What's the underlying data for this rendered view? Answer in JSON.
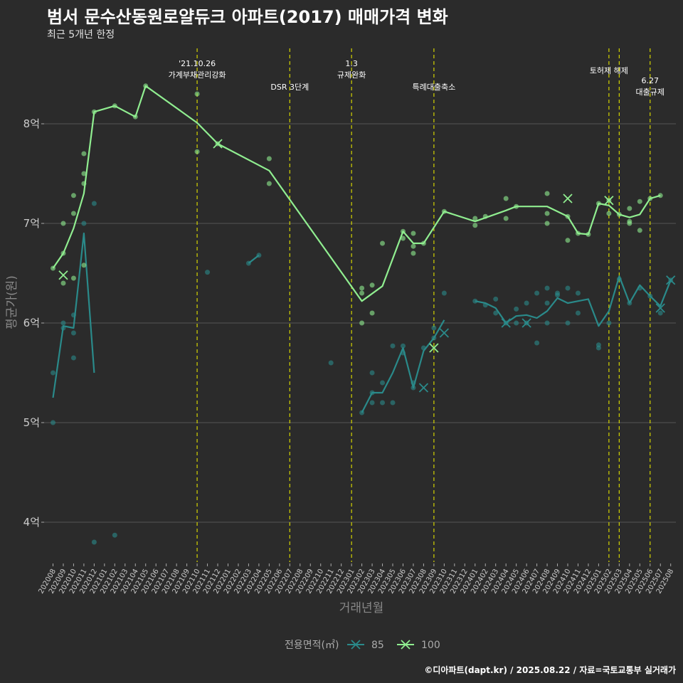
{
  "title": "범서 문수산동원로얄듀크 아파트(2017) 매매가격 변화",
  "subtitle": "최근 5개년 한정",
  "caption": "©디아파트(dapt.kr) / 2025.08.22 / 자료=국토교통부 실거래가",
  "chart_data": {
    "type": "line",
    "xlabel": "거래년월",
    "ylabel": "평균가(원)",
    "ylim": [
      3.6,
      8.95
    ],
    "yticks": [
      {
        "v": 4,
        "label": "4억"
      },
      {
        "v": 5,
        "label": "5억"
      },
      {
        "v": 6,
        "label": "6억"
      },
      {
        "v": 7,
        "label": "7억"
      },
      {
        "v": 8,
        "label": "8억"
      }
    ],
    "categories": [
      "202008",
      "202009",
      "202010",
      "202011",
      "202012",
      "202101",
      "202102",
      "202103",
      "202104",
      "202105",
      "202106",
      "202107",
      "202108",
      "202109",
      "202110",
      "202111",
      "202112",
      "202201",
      "202202",
      "202203",
      "202204",
      "202205",
      "202206",
      "202207",
      "202208",
      "202209",
      "202210",
      "202211",
      "202212",
      "202301",
      "202302",
      "202303",
      "202304",
      "202305",
      "202306",
      "202307",
      "202308",
      "202309",
      "202310",
      "202311",
      "202312",
      "202401",
      "202402",
      "202403",
      "202404",
      "202405",
      "202406",
      "202407",
      "202408",
      "202409",
      "202410",
      "202411",
      "202412",
      "202501",
      "202502",
      "202503",
      "202504",
      "202505",
      "202506",
      "202507",
      "202508"
    ],
    "events": [
      {
        "x": 14,
        "label": "'21.10.26",
        "label2": "가계부채관리강화",
        "row": 0
      },
      {
        "x": 23,
        "label": "DSR 3단계",
        "label2": "",
        "row": 2
      },
      {
        "x": 29,
        "label": "1.3",
        "label2": "규제완화",
        "row": 0
      },
      {
        "x": 37,
        "label": "특례대출축소",
        "label2": "",
        "row": 2
      },
      {
        "x": 54,
        "label": "토허제 해제",
        "label2": "",
        "row": 1
      },
      {
        "x": 55,
        "label": "",
        "label2": "",
        "row": 1
      },
      {
        "x": 58,
        "label": "6.27",
        "label2": "대출규제",
        "row": 3
      }
    ],
    "series": [
      {
        "name": "85",
        "color": "#2a8a8a",
        "segments": [
          [
            [
              0,
              5.25
            ],
            [
              1,
              5.97
            ],
            [
              2,
              5.95
            ],
            [
              3,
              6.9
            ],
            [
              4,
              5.5
            ]
          ],
          [
            [
              19,
              6.6
            ],
            [
              20,
              6.68
            ]
          ],
          [
            [
              30,
              5.1
            ],
            [
              31,
              5.3
            ],
            [
              32,
              5.3
            ],
            [
              33,
              5.5
            ],
            [
              34,
              5.75
            ],
            [
              35,
              5.35
            ],
            [
              36,
              5.72
            ],
            [
              37,
              5.85
            ],
            [
              38,
              6.03
            ]
          ],
          [
            [
              41,
              6.22
            ],
            [
              42,
              6.2
            ],
            [
              43,
              6.15
            ],
            [
              44,
              6.0
            ],
            [
              45,
              6.07
            ],
            [
              46,
              6.08
            ],
            [
              47,
              6.05
            ],
            [
              48,
              6.12
            ],
            [
              49,
              6.25
            ],
            [
              50,
              6.2
            ],
            [
              51,
              6.22
            ],
            [
              52,
              6.24
            ],
            [
              53,
              5.97
            ],
            [
              54,
              6.12
            ],
            [
              55,
              6.47
            ],
            [
              56,
              6.2
            ],
            [
              57,
              6.38
            ],
            [
              58,
              6.27
            ],
            [
              59,
              6.17
            ],
            [
              60,
              6.43
            ]
          ]
        ],
        "points": [
          [
            0,
            5.5
          ],
          [
            0,
            5.0
          ],
          [
            1,
            6.0
          ],
          [
            1,
            5.95
          ],
          [
            2,
            6.08
          ],
          [
            2,
            5.9
          ],
          [
            2,
            5.65
          ],
          [
            3,
            7.0
          ],
          [
            4,
            7.2
          ],
          [
            4,
            3.8
          ],
          [
            6,
            3.87
          ],
          [
            15,
            6.51
          ],
          [
            19,
            6.6
          ],
          [
            20,
            6.68
          ],
          [
            27,
            5.6
          ],
          [
            30,
            5.1
          ],
          [
            31,
            5.5
          ],
          [
            31,
            5.3
          ],
          [
            31,
            5.2
          ],
          [
            32,
            5.4
          ],
          [
            32,
            5.2
          ],
          [
            33,
            5.2
          ],
          [
            33,
            5.77
          ],
          [
            34,
            5.77
          ],
          [
            34,
            5.7
          ],
          [
            35,
            5.35
          ],
          [
            35,
            5.4
          ],
          [
            36,
            5.75
          ],
          [
            37,
            5.95
          ],
          [
            37,
            5.85
          ],
          [
            38,
            6.3
          ],
          [
            41,
            6.22
          ],
          [
            42,
            6.18
          ],
          [
            43,
            6.24
          ],
          [
            43,
            6.1
          ],
          [
            44,
            6.0
          ],
          [
            45,
            6.14
          ],
          [
            45,
            6.0
          ],
          [
            46,
            6.2
          ],
          [
            46,
            6.0
          ],
          [
            47,
            6.3
          ],
          [
            47,
            5.8
          ],
          [
            48,
            6.35
          ],
          [
            48,
            6.0
          ],
          [
            48,
            6.2
          ],
          [
            49,
            6.3
          ],
          [
            49,
            6.28
          ],
          [
            50,
            6.35
          ],
          [
            50,
            6.0
          ],
          [
            51,
            6.3
          ],
          [
            51,
            6.1
          ],
          [
            53,
            5.78
          ],
          [
            53,
            5.75
          ],
          [
            54,
            6.0
          ],
          [
            55,
            6.44
          ],
          [
            56,
            6.2
          ],
          [
            57,
            6.35
          ],
          [
            58,
            6.27
          ],
          [
            59,
            6.1
          ],
          [
            60,
            6.43
          ]
        ],
        "crosses": [
          [
            36,
            5.35
          ],
          [
            38,
            5.9
          ],
          [
            44,
            6.0
          ],
          [
            46,
            6.0
          ],
          [
            59,
            6.15
          ],
          [
            60,
            6.43
          ]
        ]
      },
      {
        "name": "100",
        "color": "#90ee90",
        "segments": [
          [
            [
              0,
              6.55
            ],
            [
              1,
              6.7
            ],
            [
              2,
              6.95
            ],
            [
              3,
              7.3
            ],
            [
              4,
              8.12
            ],
            [
              6,
              8.18
            ],
            [
              8,
              8.07
            ],
            [
              9,
              8.38
            ],
            [
              14,
              8.01
            ],
            [
              16,
              7.8
            ],
            [
              21,
              7.53
            ],
            [
              30,
              6.22
            ],
            [
              32,
              6.37
            ],
            [
              34,
              6.92
            ],
            [
              35,
              6.8
            ],
            [
              36,
              6.8
            ],
            [
              38,
              7.12
            ],
            [
              41,
              7.02
            ],
            [
              44,
              7.13
            ],
            [
              45,
              7.17
            ],
            [
              48,
              7.17
            ],
            [
              50,
              7.07
            ],
            [
              51,
              6.9
            ],
            [
              52,
              6.89
            ],
            [
              53,
              7.2
            ],
            [
              54,
              7.18
            ],
            [
              55,
              7.09
            ],
            [
              56,
              7.06
            ],
            [
              57,
              7.09
            ],
            [
              58,
              7.25
            ],
            [
              59,
              7.28
            ]
          ]
        ],
        "points": [
          [
            0,
            6.55
          ],
          [
            1,
            6.7
          ],
          [
            1,
            7.0
          ],
          [
            1,
            6.4
          ],
          [
            2,
            7.28
          ],
          [
            2,
            7.1
          ],
          [
            2,
            6.45
          ],
          [
            3,
            7.7
          ],
          [
            3,
            7.5
          ],
          [
            3,
            7.4
          ],
          [
            3,
            6.58
          ],
          [
            4,
            8.12
          ],
          [
            6,
            8.18
          ],
          [
            8,
            8.07
          ],
          [
            9,
            8.38
          ],
          [
            14,
            8.3
          ],
          [
            14,
            7.72
          ],
          [
            16,
            7.8
          ],
          [
            21,
            7.65
          ],
          [
            21,
            7.4
          ],
          [
            30,
            6.35
          ],
          [
            30,
            6.3
          ],
          [
            30,
            6.0
          ],
          [
            31,
            6.38
          ],
          [
            31,
            6.1
          ],
          [
            32,
            6.8
          ],
          [
            34,
            6.92
          ],
          [
            34,
            6.85
          ],
          [
            35,
            6.9
          ],
          [
            35,
            6.77
          ],
          [
            35,
            6.7
          ],
          [
            36,
            6.8
          ],
          [
            38,
            7.12
          ],
          [
            41,
            7.05
          ],
          [
            41,
            6.98
          ],
          [
            42,
            7.07
          ],
          [
            44,
            7.25
          ],
          [
            44,
            7.05
          ],
          [
            45,
            7.17
          ],
          [
            48,
            7.3
          ],
          [
            48,
            7.0
          ],
          [
            48,
            7.1
          ],
          [
            50,
            7.07
          ],
          [
            50,
            6.83
          ],
          [
            51,
            6.9
          ],
          [
            52,
            6.89
          ],
          [
            53,
            7.2
          ],
          [
            54,
            7.1
          ],
          [
            54,
            7.23
          ],
          [
            55,
            7.09
          ],
          [
            56,
            7.15
          ],
          [
            56,
            7.0
          ],
          [
            56,
            7.02
          ],
          [
            57,
            7.22
          ],
          [
            57,
            6.93
          ],
          [
            58,
            7.25
          ],
          [
            59,
            7.28
          ]
        ],
        "crosses": [
          [
            1,
            6.48
          ],
          [
            16,
            7.8
          ],
          [
            37,
            5.75
          ],
          [
            50,
            7.25
          ],
          [
            54,
            7.23
          ]
        ]
      }
    ],
    "legend": {
      "title": "전용면적(㎡)",
      "position": "bottom"
    }
  }
}
